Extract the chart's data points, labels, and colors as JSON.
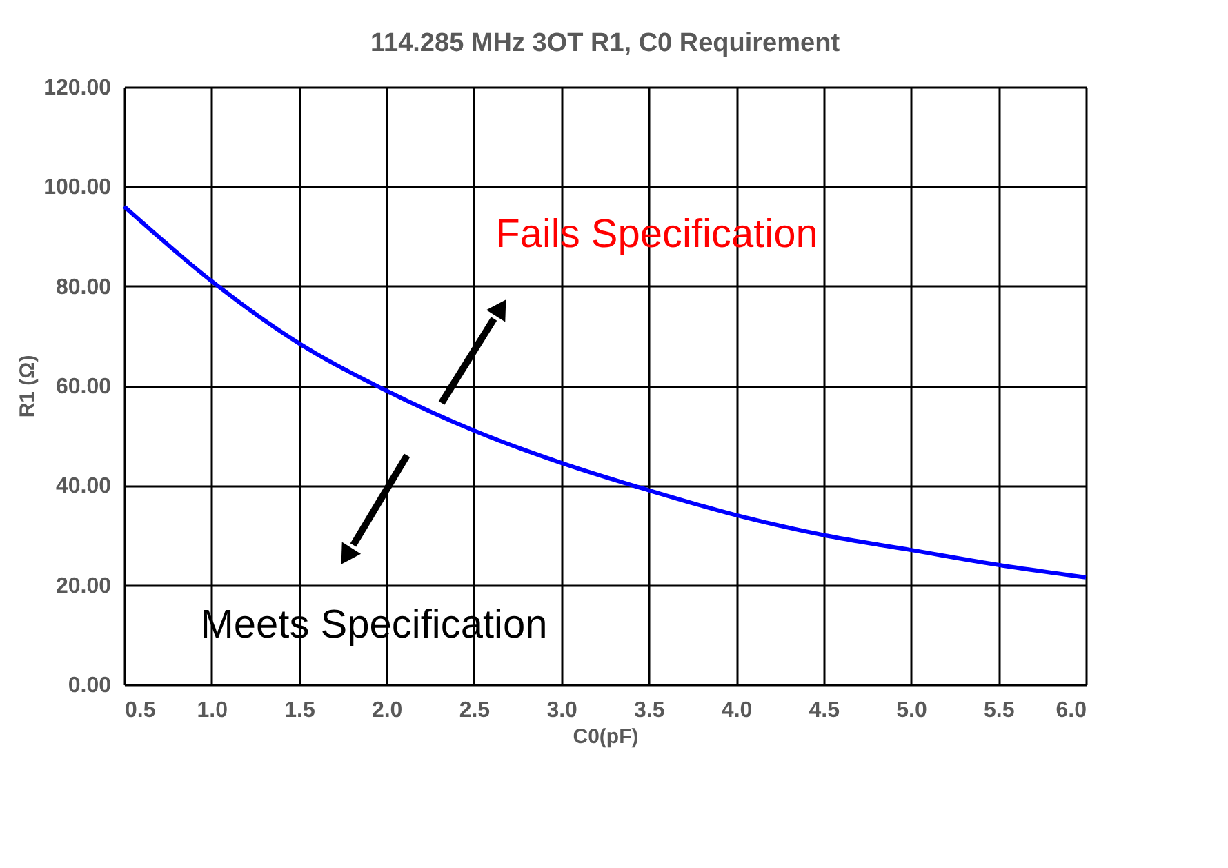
{
  "chart_data": {
    "type": "line",
    "title": "114.285 MHz 3OT R1, C0 Requirement",
    "xlabel": "C0(pF)",
    "ylabel": "R1 (Ω)",
    "x": [
      0.5,
      1.0,
      1.5,
      2.0,
      2.5,
      3.0,
      3.5,
      4.0,
      4.5,
      5.0,
      5.5,
      6.0
    ],
    "series": [
      {
        "color": "#0000ff",
        "values": [
          96,
          81,
          68.5,
          59,
          51,
          44.5,
          39,
          34,
          30,
          27,
          24,
          21.5
        ]
      }
    ],
    "xlim": [
      0.5,
      6.0
    ],
    "xticks": [
      0.5,
      {
        "value": 1,
        "label": "1.0"
      },
      1.5,
      {
        "value": 2,
        "label": "2.0"
      },
      2.5,
      {
        "value": 3,
        "label": "3.0"
      },
      3.5,
      {
        "value": 4,
        "label": "4.0"
      },
      4.5,
      {
        "value": 5,
        "label": "5.0"
      },
      5.5,
      {
        "value": 6,
        "label": "6.0"
      }
    ],
    "ylim": [
      0,
      120
    ],
    "yticks": [
      {
        "value": 0,
        "label": "0.00"
      },
      {
        "value": 20,
        "label": "20.00"
      },
      {
        "value": 40,
        "label": "40.00"
      },
      {
        "value": 60,
        "label": "60.00"
      },
      {
        "value": 80,
        "label": "80.00"
      },
      {
        "value": 100,
        "label": "100.00"
      },
      {
        "value": 120,
        "label": "120.00"
      }
    ],
    "grid": true,
    "legend": false,
    "marker": "none",
    "line_style": "solid",
    "annotations": [
      "Fails Specification",
      "Meets Specification"
    ]
  }
}
